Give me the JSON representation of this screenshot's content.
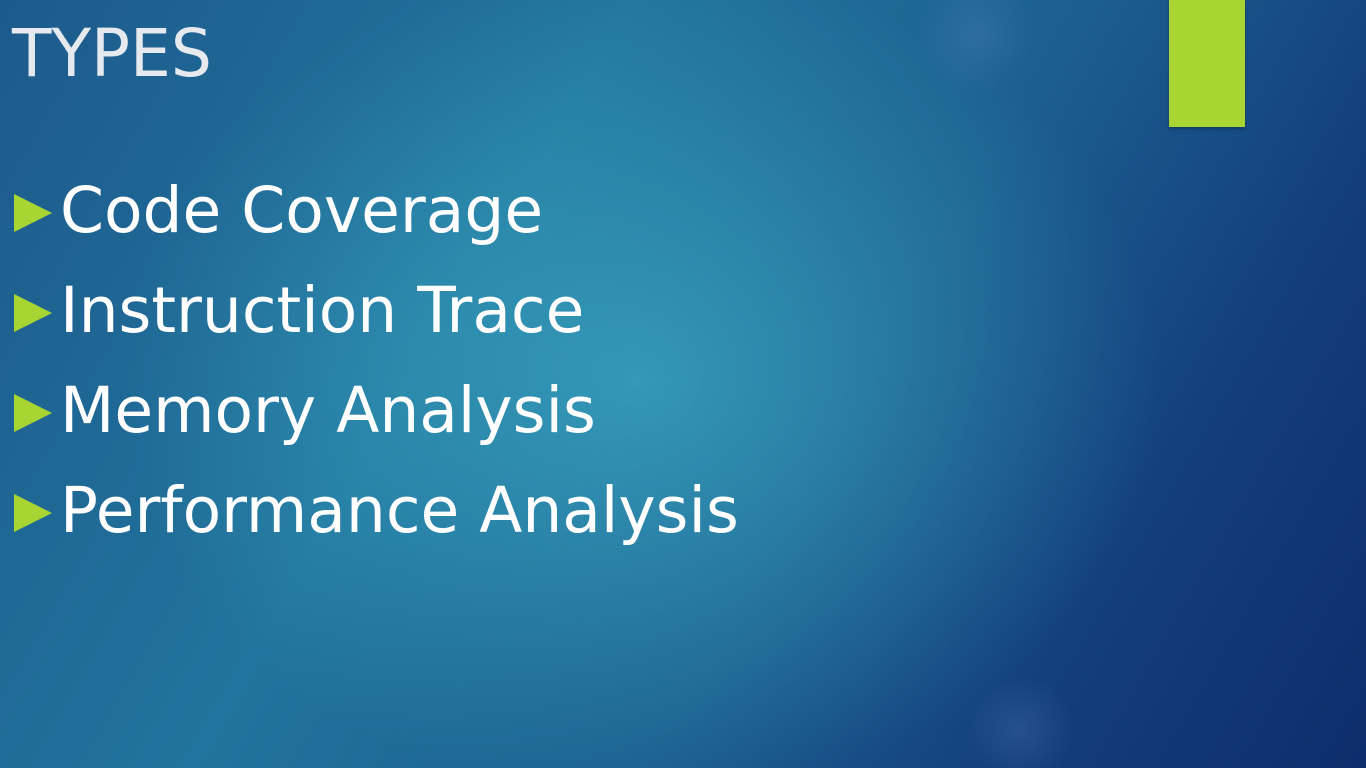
{
  "slide": {
    "title": "TYPES",
    "bullets": [
      {
        "text": "Code Coverage"
      },
      {
        "text": "Instruction Trace"
      },
      {
        "text": "Memory Analysis"
      },
      {
        "text": "Performance Analysis"
      }
    ]
  },
  "colors": {
    "accent": "#a8d532",
    "background_dark": "#0d2d6b",
    "background_light": "#3aa4be",
    "text": "#ffffff"
  },
  "icons": {
    "bullet": "triangle-right-icon"
  }
}
